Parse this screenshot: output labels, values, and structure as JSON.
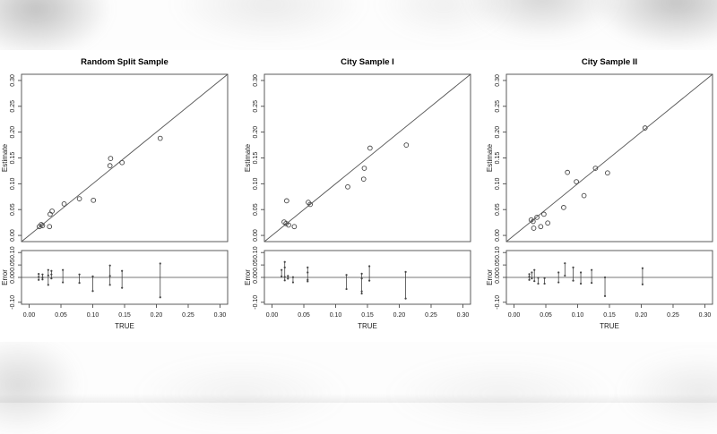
{
  "style": {
    "frame_color": "#4a4a4a",
    "marker_color": "#454545",
    "line_color": "#555555",
    "text_color": "#1c1c1c",
    "background": "#ffffff"
  },
  "chart_data": {
    "type": "scatter",
    "layout": "three figures side by side; each has a main scatter panel (Estimate vs TRUE) with y=x identity line and a lower residual panel (Error vs TRUE) with a zero line and vertical error ranges",
    "xlabel": "TRUE",
    "xlim": [
      0,
      0.3
    ],
    "x_ticks": [
      {
        "v": 0.0,
        "label": "0.00"
      },
      {
        "v": 0.05,
        "label": "0.05"
      },
      {
        "v": 0.1,
        "label": "0.10"
      },
      {
        "v": 0.15,
        "label": "0.15"
      },
      {
        "v": 0.2,
        "label": "0.20"
      },
      {
        "v": 0.25,
        "label": "0.25"
      },
      {
        "v": 0.3,
        "label": "0.30"
      }
    ],
    "main_panel": {
      "ylabel": "Estimate",
      "ylim": [
        0,
        0.3
      ],
      "identity_line": true,
      "y_ticks": [
        {
          "v": 0.0,
          "label": "0.00"
        },
        {
          "v": 0.05,
          "label": "0.05"
        },
        {
          "v": 0.1,
          "label": "0.10"
        },
        {
          "v": 0.15,
          "label": "0.15"
        },
        {
          "v": 0.2,
          "label": "0.20"
        },
        {
          "v": 0.25,
          "label": "0.25"
        },
        {
          "v": 0.3,
          "label": "0.30"
        }
      ]
    },
    "error_panel": {
      "ylabel": "Error",
      "ylim": [
        -0.1,
        0.1
      ],
      "zero_line": true,
      "y_ticks": [
        {
          "v": 0.1,
          "label": "0.10"
        },
        {
          "v": 0.05,
          "label": "0.05"
        },
        {
          "v": 0.0,
          "label": "0.00"
        },
        {
          "v": -0.1,
          "label": "-0.10"
        }
      ]
    },
    "figures": [
      {
        "title": "Random Split Sample",
        "points": [
          [
            0.016,
            0.017
          ],
          [
            0.019,
            0.021
          ],
          [
            0.021,
            0.019
          ],
          [
            0.032,
            0.017
          ],
          [
            0.033,
            0.041
          ],
          [
            0.036,
            0.047
          ],
          [
            0.055,
            0.061
          ],
          [
            0.079,
            0.071
          ],
          [
            0.101,
            0.068
          ],
          [
            0.127,
            0.135
          ],
          [
            0.128,
            0.149
          ],
          [
            0.146,
            0.141
          ],
          [
            0.206,
            0.188
          ]
        ],
        "errors": [
          {
            "x": 0.015,
            "values": [
              0.014,
              0.002,
              -0.01
            ]
          },
          {
            "x": 0.021,
            "values": [
              0.012,
              0.0,
              -0.008
            ]
          },
          {
            "x": 0.03,
            "values": [
              0.03,
              0.008,
              -0.03
            ]
          },
          {
            "x": 0.035,
            "values": [
              0.026,
              0.012,
              -0.004
            ]
          },
          {
            "x": 0.053,
            "values": [
              0.03,
              -0.02
            ]
          },
          {
            "x": 0.079,
            "values": [
              0.012,
              -0.022
            ]
          },
          {
            "x": 0.1,
            "values": [
              0.004,
              -0.055
            ]
          },
          {
            "x": 0.127,
            "values": [
              0.048,
              0.006,
              -0.03
            ]
          },
          {
            "x": 0.146,
            "values": [
              0.026,
              -0.042
            ]
          },
          {
            "x": 0.206,
            "values": [
              0.056,
              -0.08
            ]
          }
        ]
      },
      {
        "title": "City Sample I",
        "points": [
          [
            0.019,
            0.026
          ],
          [
            0.022,
            0.023
          ],
          [
            0.026,
            0.02
          ],
          [
            0.035,
            0.017
          ],
          [
            0.023,
            0.067
          ],
          [
            0.057,
            0.064
          ],
          [
            0.06,
            0.06
          ],
          [
            0.119,
            0.094
          ],
          [
            0.144,
            0.109
          ],
          [
            0.145,
            0.13
          ],
          [
            0.154,
            0.169
          ],
          [
            0.211,
            0.175
          ]
        ],
        "errors": [
          {
            "x": 0.015,
            "values": [
              0.03,
              0.004
            ]
          },
          {
            "x": 0.02,
            "values": [
              0.062,
              0.04,
              0.002,
              -0.012
            ]
          },
          {
            "x": 0.025,
            "values": [
              0.006,
              -0.005
            ]
          },
          {
            "x": 0.033,
            "values": [
              0.001,
              -0.02
            ]
          },
          {
            "x": 0.056,
            "values": [
              0.04,
              0.02,
              -0.01,
              -0.016
            ]
          },
          {
            "x": 0.117,
            "values": [
              0.01,
              -0.047
            ]
          },
          {
            "x": 0.141,
            "values": [
              0.015,
              -0.004,
              -0.056,
              -0.065
            ]
          },
          {
            "x": 0.153,
            "values": [
              0.045,
              -0.013
            ]
          },
          {
            "x": 0.21,
            "values": [
              0.022,
              -0.085
            ]
          }
        ]
      },
      {
        "title": "City Sample II",
        "points": [
          [
            0.027,
            0.03
          ],
          [
            0.03,
            0.027
          ],
          [
            0.031,
            0.014
          ],
          [
            0.036,
            0.035
          ],
          [
            0.042,
            0.017
          ],
          [
            0.047,
            0.041
          ],
          [
            0.053,
            0.024
          ],
          [
            0.078,
            0.054
          ],
          [
            0.084,
            0.122
          ],
          [
            0.098,
            0.104
          ],
          [
            0.11,
            0.077
          ],
          [
            0.128,
            0.13
          ],
          [
            0.147,
            0.121
          ],
          [
            0.206,
            0.208
          ]
        ],
        "errors": [
          {
            "x": 0.024,
            "values": [
              0.013,
              0.003,
              -0.01
            ]
          },
          {
            "x": 0.028,
            "values": [
              0.02,
              -0.004
            ]
          },
          {
            "x": 0.032,
            "values": [
              0.03,
              -0.015
            ]
          },
          {
            "x": 0.038,
            "values": [
              -0.002,
              -0.025
            ]
          },
          {
            "x": 0.048,
            "values": [
              -0.003,
              -0.025
            ]
          },
          {
            "x": 0.07,
            "values": [
              0.02,
              -0.02
            ]
          },
          {
            "x": 0.08,
            "values": [
              0.057,
              0.007
            ]
          },
          {
            "x": 0.093,
            "values": [
              0.04,
              -0.013
            ]
          },
          {
            "x": 0.105,
            "values": [
              0.02,
              -0.025
            ]
          },
          {
            "x": 0.122,
            "values": [
              0.03,
              -0.022
            ]
          },
          {
            "x": 0.143,
            "values": [
              0.0,
              -0.075
            ]
          },
          {
            "x": 0.202,
            "values": [
              0.037,
              -0.028
            ]
          }
        ]
      }
    ]
  }
}
